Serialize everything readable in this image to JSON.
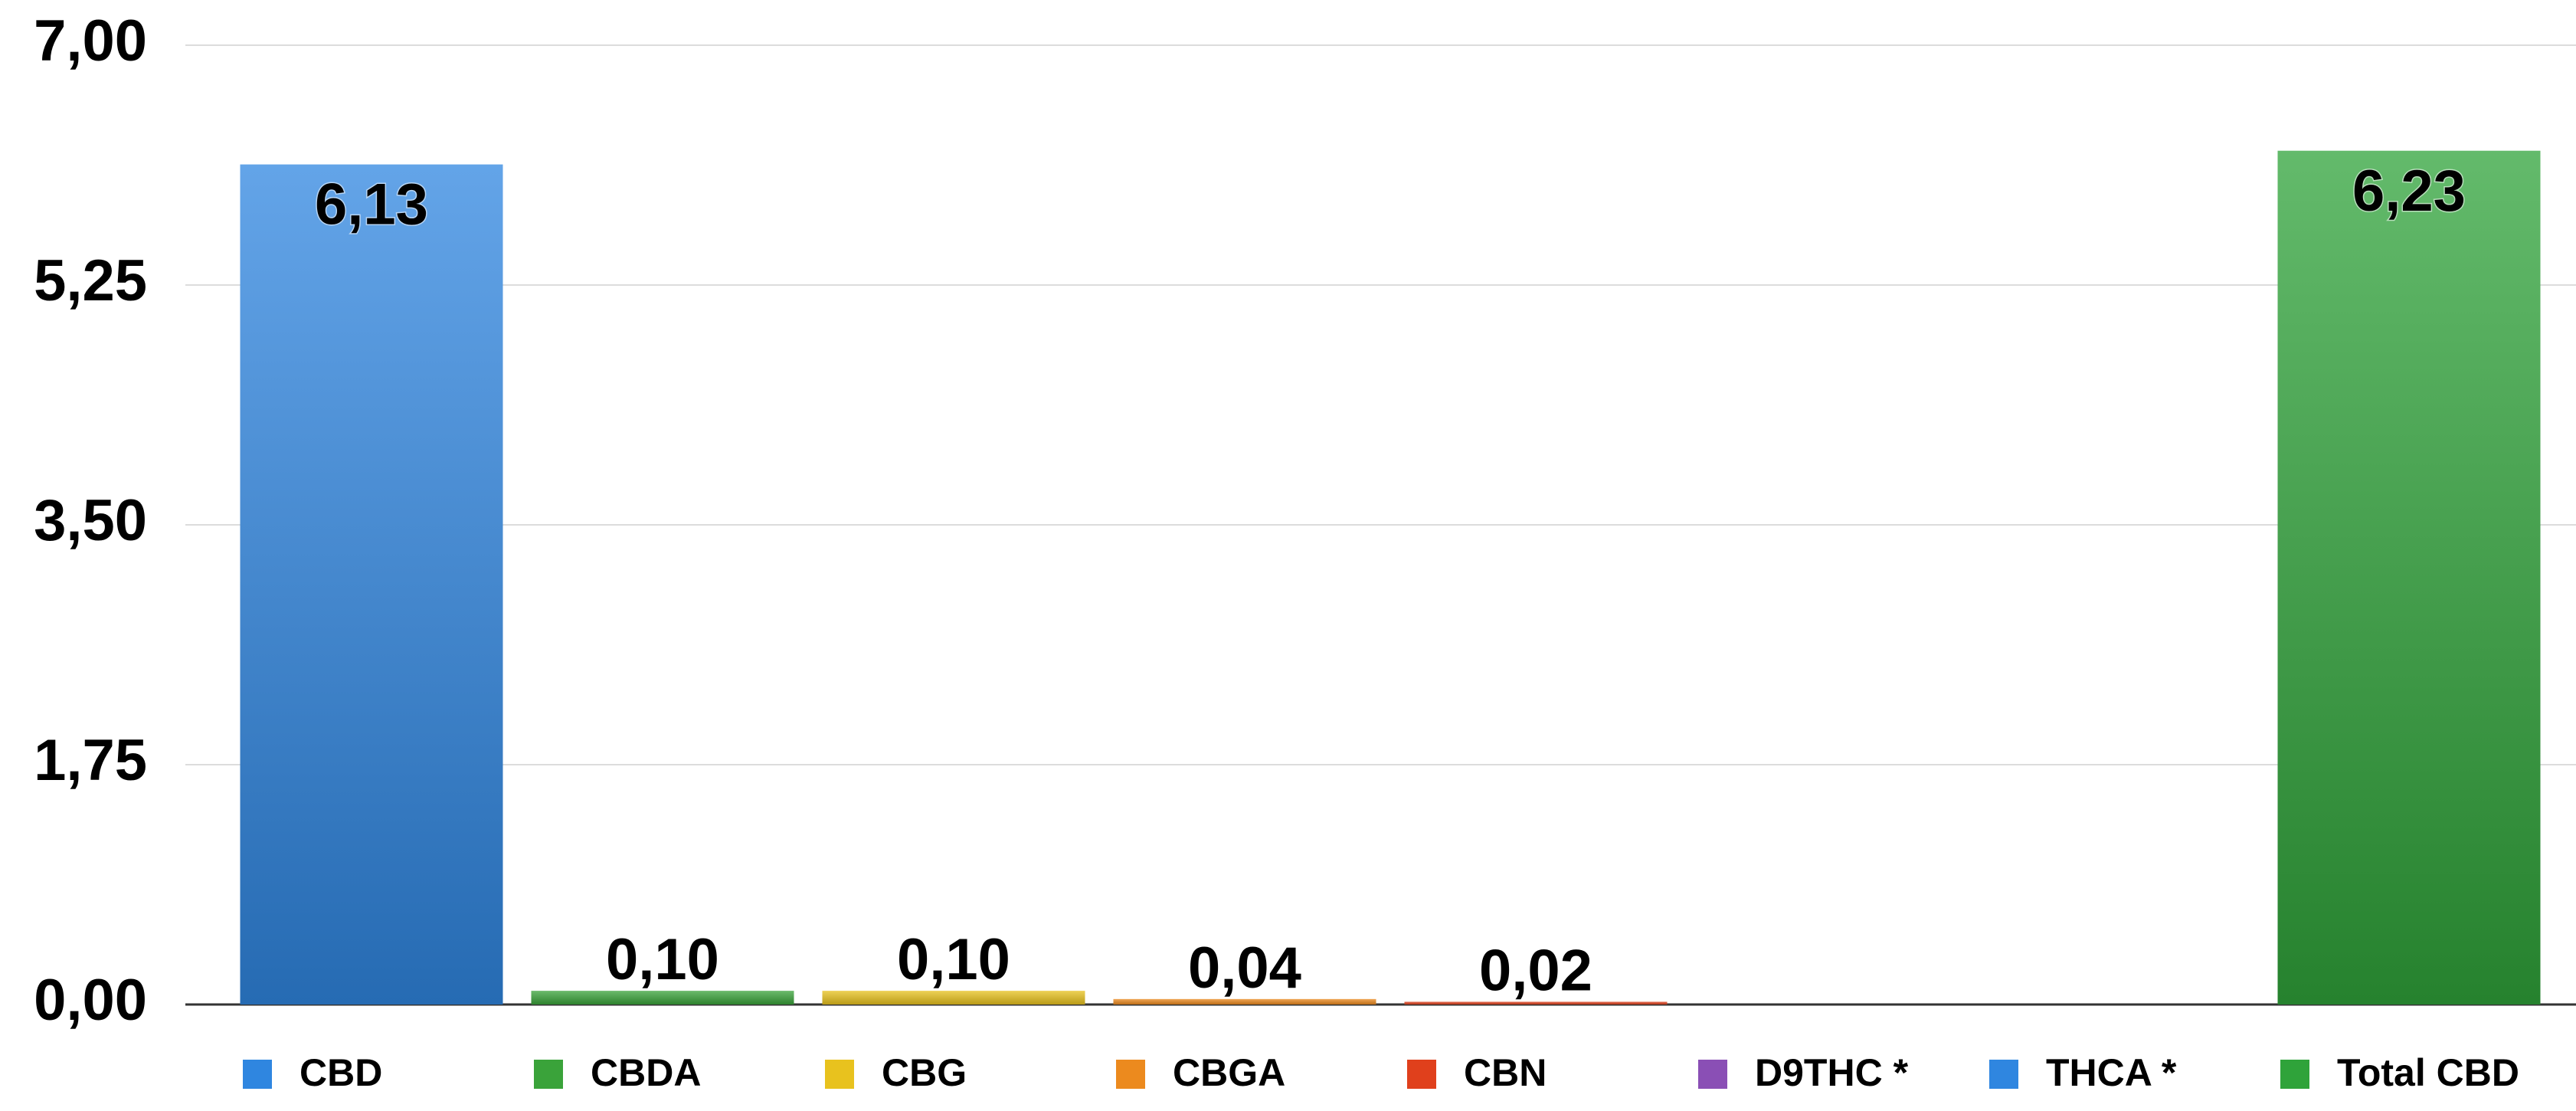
{
  "chart_data": {
    "type": "bar",
    "categories": [
      "CBD",
      "CBDA",
      "CBG",
      "CBGA",
      "CBN",
      "D9THC *",
      "THCA *",
      "Total CBD"
    ],
    "values": [
      6.13,
      0.1,
      0.1,
      0.04,
      0.02,
      null,
      null,
      6.23
    ],
    "value_labels": [
      "6,13",
      "0,10",
      "0,10",
      "0,04",
      "0,02",
      null,
      null,
      "6,23"
    ],
    "colors": [
      "#2f86e0",
      "#3aa33a",
      "#e8c21e",
      "#ec8a1e",
      "#e0401c",
      "#8a4fb5",
      "#2f86e0",
      "#2fa33a"
    ],
    "ylim": [
      0,
      7
    ],
    "yticks": [
      {
        "value": 0,
        "label": "0,00"
      },
      {
        "value": 1.75,
        "label": "1,75"
      },
      {
        "value": 3.5,
        "label": "3,50"
      },
      {
        "value": 5.25,
        "label": "5,25"
      },
      {
        "value": 7,
        "label": "7,00"
      }
    ],
    "grid": true
  }
}
